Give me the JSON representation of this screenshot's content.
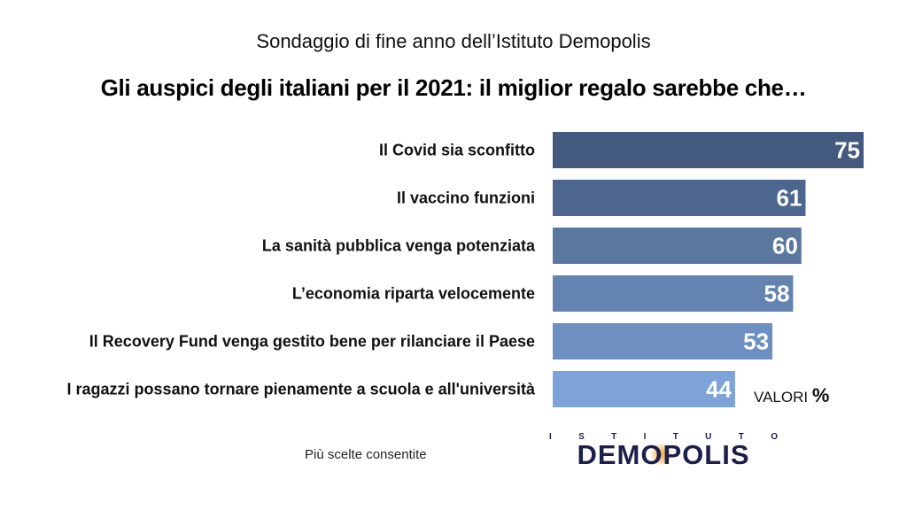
{
  "header": {
    "title": "Sondaggio di fine anno dell’Istituto Demopolis",
    "subtitle": "Gli auspici degli italiani per il 2021: il miglior regalo sarebbe che…"
  },
  "chart_data": {
    "type": "bar",
    "orientation": "horizontal",
    "categories": [
      "Il Covid sia sconfitto",
      "Il vaccino funzioni",
      "La sanità pubblica venga potenziata",
      "L’economia riparta velocemente",
      "Il Recovery Fund venga gestito bene per rilanciare il Paese",
      "I ragazzi possano tornare pienamente a scuola e all'università"
    ],
    "values": [
      75,
      61,
      60,
      58,
      53,
      44
    ],
    "data_labels": [
      "75",
      "61",
      "60",
      "58",
      "53",
      "44"
    ],
    "bar_colors": [
      "#435a7e",
      "#4d6690",
      "#5a779f",
      "#6583b0",
      "#6e8fc1",
      "#7ea3d8"
    ],
    "xlim": [
      0,
      75
    ],
    "grid": false,
    "legend": "none"
  },
  "units": {
    "label": "VALORI",
    "symbol": "%"
  },
  "footnote": "Più scelte consentite",
  "logo": {
    "top_letters": [
      "I",
      "S",
      "T",
      "I",
      "T",
      "U",
      "T",
      "O"
    ],
    "name": "DEMOPOLIS",
    "accent_color": "#f4a340",
    "text_color": "#1b1f4a"
  }
}
